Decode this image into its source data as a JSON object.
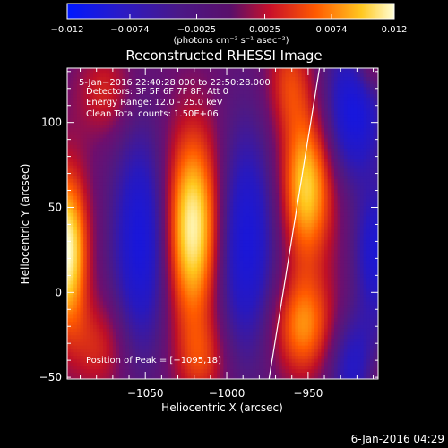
{
  "colorbar": {
    "tick_labels": [
      "-0.012",
      "-0.0074",
      "-0.0025",
      "0.0025",
      "0.0074",
      "0.012"
    ],
    "min": -0.012,
    "max": 0.012,
    "units_label": "(photons cm⁻² s⁻¹ asec⁻²)"
  },
  "chart_data": {
    "type": "heatmap",
    "title": "Reconstructed RHESSI Image",
    "xlabel": "Heliocentric X (arcsec)",
    "ylabel": "Heliocentric Y (arcsec)",
    "xlim": [
      -1098,
      -907
    ],
    "ylim": [
      -51,
      132
    ],
    "x_ticks": [
      -1050,
      -1000,
      -950
    ],
    "x_tick_labels": [
      "-1050",
      "-1000",
      "-950"
    ],
    "y_ticks": [
      0,
      50,
      100
    ],
    "y_tick_labels": [
      "0",
      "50",
      "100"
    ],
    "colormap": "RHESSI heat (blue-purple-red-yellow-white)",
    "annotations": [
      "5-Jan-2016 22:40:28.000 to 22:50:28.000",
      "Detectors: 3F 5F 6F 7F 8F, Att 0",
      "Energy Range: 12.0 - 25.0 keV",
      "Clean    Total counts: 1.50E+06",
      "Position of Peak = [-1095,18]"
    ],
    "peak": [
      -1095,
      18
    ],
    "limb_line": [
      [
        -974,
        -51
      ],
      [
        -943,
        132
      ]
    ],
    "limb_color": "#ffffff"
  },
  "footer": {
    "timestamp": "6-Jan-2016 04:29"
  }
}
